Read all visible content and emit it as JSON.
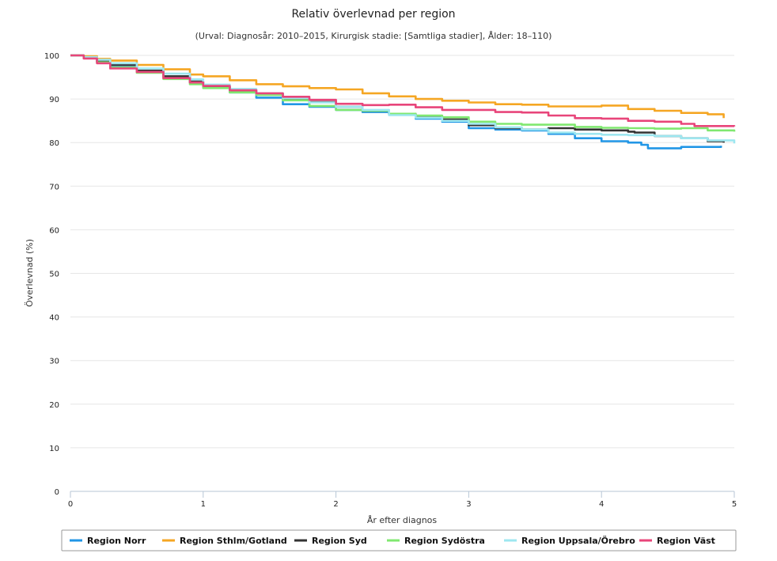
{
  "chart_data": {
    "type": "line",
    "title": "Relativ överlevnad per region",
    "subtitle": "(Urval: Diagnosår: 2010–2015, Kirurgisk stadie: [Samtliga stadier], Ålder: 18–110)",
    "xlabel": "År efter diagnos",
    "ylabel": "Överlevnad (%)",
    "xlim": [
      0,
      5
    ],
    "ylim": [
      0,
      100
    ],
    "xticks": [
      "0",
      "1",
      "2",
      "3",
      "4",
      "5"
    ],
    "yticks": [
      "0",
      "10",
      "20",
      "30",
      "40",
      "50",
      "60",
      "70",
      "80",
      "90",
      "100"
    ],
    "grid": "horizontal",
    "legend_position": "bottom",
    "series": [
      {
        "name": "Region Norr",
        "color": "#2196e6",
        "points": [
          [
            0,
            100
          ],
          [
            0.1,
            99.5
          ],
          [
            0.2,
            98.5
          ],
          [
            0.3,
            97.3
          ],
          [
            0.5,
            96.5
          ],
          [
            0.7,
            95
          ],
          [
            0.9,
            93.8
          ],
          [
            1,
            92.8
          ],
          [
            1.2,
            91.5
          ],
          [
            1.4,
            90.3
          ],
          [
            1.6,
            88.8
          ],
          [
            1.8,
            88.2
          ],
          [
            2,
            87.5
          ],
          [
            2.2,
            87
          ],
          [
            2.4,
            86.5
          ],
          [
            2.6,
            85.5
          ],
          [
            2.8,
            84.8
          ],
          [
            3,
            83.3
          ],
          [
            3.2,
            83
          ],
          [
            3.4,
            82.8
          ],
          [
            3.6,
            82
          ],
          [
            3.8,
            81
          ],
          [
            4,
            80.3
          ],
          [
            4.2,
            80
          ],
          [
            4.3,
            79.5
          ],
          [
            4.35,
            78.7
          ],
          [
            4.6,
            79
          ],
          [
            4.9,
            79.3
          ]
        ]
      },
      {
        "name": "Region Sthlm/Gotland",
        "color": "#f5a623",
        "points": [
          [
            0,
            100
          ],
          [
            0.1,
            99.8
          ],
          [
            0.2,
            99.2
          ],
          [
            0.3,
            98.8
          ],
          [
            0.5,
            97.8
          ],
          [
            0.7,
            96.8
          ],
          [
            0.9,
            95.6
          ],
          [
            1,
            95.2
          ],
          [
            1.2,
            94.3
          ],
          [
            1.4,
            93.4
          ],
          [
            1.6,
            92.9
          ],
          [
            1.8,
            92.5
          ],
          [
            2,
            92.2
          ],
          [
            2.2,
            91.3
          ],
          [
            2.4,
            90.6
          ],
          [
            2.6,
            90
          ],
          [
            2.8,
            89.6
          ],
          [
            3,
            89.2
          ],
          [
            3.2,
            88.8
          ],
          [
            3.4,
            88.7
          ],
          [
            3.6,
            88.3
          ],
          [
            3.8,
            88.3
          ],
          [
            4,
            88.5
          ],
          [
            4.2,
            87.7
          ],
          [
            4.4,
            87.3
          ],
          [
            4.6,
            86.8
          ],
          [
            4.8,
            86.5
          ],
          [
            4.92,
            85.6
          ]
        ]
      },
      {
        "name": "Region Syd",
        "color": "#333333",
        "points": [
          [
            0,
            100
          ],
          [
            0.1,
            99.4
          ],
          [
            0.2,
            98.6
          ],
          [
            0.3,
            97.8
          ],
          [
            0.5,
            96.5
          ],
          [
            0.7,
            95.2
          ],
          [
            0.9,
            94
          ],
          [
            1,
            92.7
          ],
          [
            1.2,
            92
          ],
          [
            1.4,
            91.2
          ],
          [
            1.6,
            90
          ],
          [
            1.8,
            89.3
          ],
          [
            2,
            88.2
          ],
          [
            2.2,
            87.3
          ],
          [
            2.4,
            86.6
          ],
          [
            2.6,
            86
          ],
          [
            2.8,
            85.3
          ],
          [
            3,
            84
          ],
          [
            3.2,
            83.3
          ],
          [
            3.4,
            83
          ],
          [
            3.6,
            83.3
          ],
          [
            3.8,
            83
          ],
          [
            4,
            82.8
          ],
          [
            4.2,
            82.5
          ],
          [
            4.25,
            82.3
          ],
          [
            4.4,
            81.5
          ],
          [
            4.6,
            81
          ],
          [
            4.8,
            80.3
          ],
          [
            4.92,
            80
          ]
        ]
      },
      {
        "name": "Region Sydöstra",
        "color": "#80e870",
        "points": [
          [
            0,
            100
          ],
          [
            0.1,
            99.5
          ],
          [
            0.2,
            98.4
          ],
          [
            0.3,
            97.2
          ],
          [
            0.5,
            96
          ],
          [
            0.7,
            94.6
          ],
          [
            0.9,
            93.4
          ],
          [
            1,
            92.5
          ],
          [
            1.2,
            91.5
          ],
          [
            1.4,
            90.9
          ],
          [
            1.6,
            89.7
          ],
          [
            1.8,
            88.4
          ],
          [
            2,
            87.5
          ],
          [
            2.2,
            87.3
          ],
          [
            2.4,
            86.6
          ],
          [
            2.6,
            86.2
          ],
          [
            2.8,
            85.8
          ],
          [
            3,
            84.8
          ],
          [
            3.2,
            84.3
          ],
          [
            3.4,
            84.1
          ],
          [
            3.6,
            84.1
          ],
          [
            3.8,
            83.6
          ],
          [
            4,
            83.4
          ],
          [
            4.2,
            83.3
          ],
          [
            4.4,
            83.2
          ],
          [
            4.6,
            83.3
          ],
          [
            4.8,
            82.8
          ],
          [
            5,
            82.5
          ]
        ]
      },
      {
        "name": "Region Uppsala/Örebro",
        "color": "#9ee7f0",
        "points": [
          [
            0,
            100
          ],
          [
            0.1,
            99.6
          ],
          [
            0.2,
            99
          ],
          [
            0.3,
            98.2
          ],
          [
            0.5,
            97
          ],
          [
            0.7,
            95.8
          ],
          [
            0.9,
            94.5
          ],
          [
            1,
            93.3
          ],
          [
            1.2,
            92.3
          ],
          [
            1.4,
            91.3
          ],
          [
            1.6,
            90.2
          ],
          [
            1.8,
            89.2
          ],
          [
            2,
            88.2
          ],
          [
            2.2,
            87.5
          ],
          [
            2.4,
            86.3
          ],
          [
            2.6,
            85.7
          ],
          [
            2.8,
            85
          ],
          [
            3,
            84.3
          ],
          [
            3.2,
            83.5
          ],
          [
            3.4,
            83
          ],
          [
            3.6,
            82.3
          ],
          [
            3.8,
            82
          ],
          [
            4,
            81.8
          ],
          [
            4.2,
            81.7
          ],
          [
            4.4,
            81.5
          ],
          [
            4.6,
            81
          ],
          [
            4.8,
            80.5
          ],
          [
            5,
            79.8
          ]
        ]
      },
      {
        "name": "Region Väst",
        "color": "#e8457a",
        "points": [
          [
            0,
            100
          ],
          [
            0.1,
            99.3
          ],
          [
            0.2,
            98.2
          ],
          [
            0.3,
            97
          ],
          [
            0.5,
            96.2
          ],
          [
            0.7,
            94.8
          ],
          [
            0.9,
            93.8
          ],
          [
            1,
            93
          ],
          [
            1.2,
            92
          ],
          [
            1.4,
            91.3
          ],
          [
            1.6,
            90.5
          ],
          [
            1.8,
            89.8
          ],
          [
            2,
            88.9
          ],
          [
            2.2,
            88.6
          ],
          [
            2.4,
            88.7
          ],
          [
            2.6,
            88.1
          ],
          [
            2.8,
            87.5
          ],
          [
            3,
            87.5
          ],
          [
            3.2,
            87
          ],
          [
            3.4,
            86.9
          ],
          [
            3.6,
            86.2
          ],
          [
            3.8,
            85.6
          ],
          [
            4,
            85.5
          ],
          [
            4.2,
            85
          ],
          [
            4.4,
            84.8
          ],
          [
            4.6,
            84.3
          ],
          [
            4.7,
            83.8
          ],
          [
            5,
            83.7
          ]
        ]
      }
    ]
  },
  "colors": {
    "grid": "#e6e6e6",
    "axis": "#b7c6d6"
  }
}
